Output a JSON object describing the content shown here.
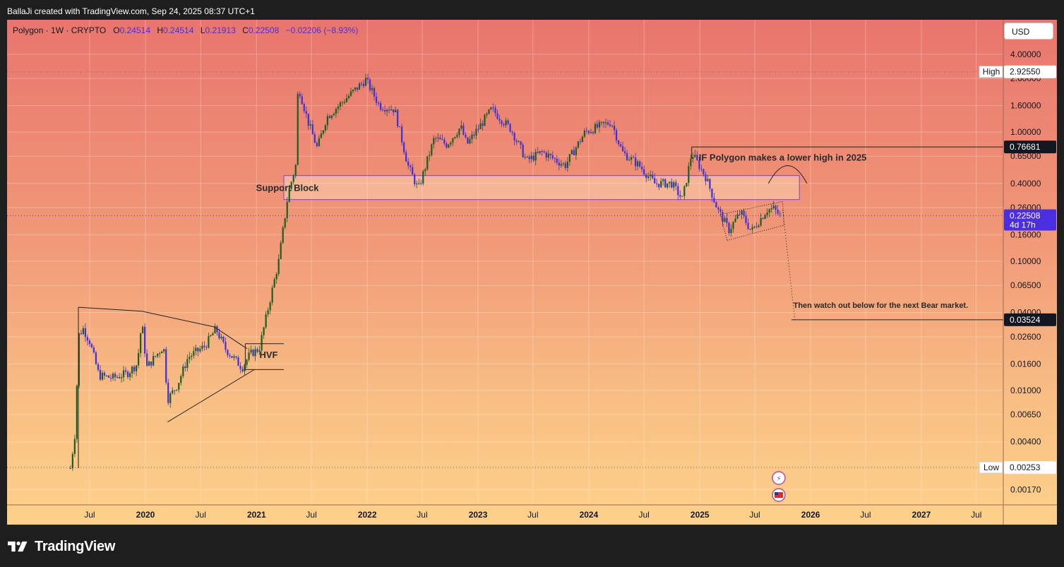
{
  "header": {
    "attribution": "BallaJi created with TradingView.com, Sep 24, 2025 08:37 UTC+1"
  },
  "legend": {
    "symbol": "Polygon · 1W · CRYPTO",
    "o_label": "O",
    "o": "0.24514",
    "h_label": "H",
    "h": "0.24514",
    "l_label": "L",
    "l": "0.21913",
    "c_label": "C",
    "c": "0.22508",
    "change": "−0.02206 (−8.93%)"
  },
  "currency_button": "USD",
  "brand": {
    "name": "TradingView"
  },
  "colors": {
    "up": "#1b5e20",
    "down": "#3f2fd6",
    "drawing": "#222222",
    "price_badge": "#4a2ee0",
    "dark_badge": "#131722"
  },
  "chart_data": {
    "type": "candlestick",
    "scale": "log",
    "grid": true,
    "ylim": [
      0.0013,
      5.2
    ],
    "y_ticks": [
      "4.00000",
      "2.60000",
      "1.60000",
      "1.00000",
      "0.65000",
      "0.40000",
      "0.26000",
      "0.16000",
      "0.10000",
      "0.06500",
      "0.04000",
      "0.02600",
      "0.01600",
      "0.01000",
      "0.00650",
      "0.00400",
      "0.00170"
    ],
    "x_ticks": [
      {
        "label": "Jul",
        "date": "2019-07-01",
        "bold": false
      },
      {
        "label": "2020",
        "date": "2020-01-01",
        "bold": true
      },
      {
        "label": "Jul",
        "date": "2020-07-01",
        "bold": false
      },
      {
        "label": "2021",
        "date": "2021-01-01",
        "bold": true
      },
      {
        "label": "Jul",
        "date": "2021-07-01",
        "bold": false
      },
      {
        "label": "2022",
        "date": "2022-01-01",
        "bold": true
      },
      {
        "label": "Jul",
        "date": "2022-07-01",
        "bold": false
      },
      {
        "label": "2023",
        "date": "2023-01-01",
        "bold": true
      },
      {
        "label": "Jul",
        "date": "2023-07-01",
        "bold": false
      },
      {
        "label": "2024",
        "date": "2024-01-01",
        "bold": true
      },
      {
        "label": "Jul",
        "date": "2024-07-01",
        "bold": false
      },
      {
        "label": "2025",
        "date": "2025-01-01",
        "bold": true
      },
      {
        "label": "Jul",
        "date": "2025-07-01",
        "bold": false
      },
      {
        "label": "2026",
        "date": "2026-01-01",
        "bold": true
      },
      {
        "label": "Jul",
        "date": "2026-07-01",
        "bold": false
      },
      {
        "label": "2027",
        "date": "2027-01-01",
        "bold": true
      },
      {
        "label": "Jul",
        "date": "2027-07-01",
        "bold": false
      }
    ],
    "price_path": [
      [
        "2019-04-29",
        0.0025
      ],
      [
        "2019-05-13",
        0.0045
      ],
      [
        "2019-05-27",
        0.027
      ],
      [
        "2019-06-10",
        0.03
      ],
      [
        "2019-07-01",
        0.024
      ],
      [
        "2019-08-01",
        0.013
      ],
      [
        "2019-09-15",
        0.0125
      ],
      [
        "2019-11-01",
        0.0135
      ],
      [
        "2019-12-05",
        0.016
      ],
      [
        "2019-12-20",
        0.034
      ],
      [
        "2020-01-05",
        0.015
      ],
      [
        "2020-02-15",
        0.02
      ],
      [
        "2020-03-01",
        0.022
      ],
      [
        "2020-03-14",
        0.0085
      ],
      [
        "2020-04-15",
        0.011
      ],
      [
        "2020-05-20",
        0.018
      ],
      [
        "2020-07-15",
        0.022
      ],
      [
        "2020-08-20",
        0.03
      ],
      [
        "2020-09-20",
        0.021
      ],
      [
        "2020-11-15",
        0.015
      ],
      [
        "2020-12-10",
        0.019
      ],
      [
        "2021-01-10",
        0.021
      ],
      [
        "2021-02-10",
        0.045
      ],
      [
        "2021-03-15",
        0.1
      ],
      [
        "2021-04-15",
        0.33
      ],
      [
        "2021-05-10",
        0.55
      ],
      [
        "2021-05-18",
        2.3
      ],
      [
        "2021-06-20",
        1.2
      ],
      [
        "2021-07-20",
        0.75
      ],
      [
        "2021-08-20",
        1.3
      ],
      [
        "2021-10-10",
        1.7
      ],
      [
        "2021-12-27",
        2.55
      ],
      [
        "2022-02-10",
        1.6
      ],
      [
        "2022-04-01",
        1.5
      ],
      [
        "2022-05-15",
        0.55
      ],
      [
        "2022-06-18",
        0.36
      ],
      [
        "2022-08-10",
        0.9
      ],
      [
        "2022-09-20",
        0.8
      ],
      [
        "2022-11-05",
        1.1
      ],
      [
        "2022-11-25",
        0.8
      ],
      [
        "2023-02-15",
        1.5
      ],
      [
        "2023-04-20",
        1.05
      ],
      [
        "2023-06-10",
        0.6
      ],
      [
        "2023-08-01",
        0.7
      ],
      [
        "2023-10-15",
        0.55
      ],
      [
        "2023-12-20",
        1.0
      ],
      [
        "2024-03-15",
        1.2
      ],
      [
        "2024-04-20",
        0.7
      ],
      [
        "2024-06-15",
        0.55
      ],
      [
        "2024-08-05",
        0.4
      ],
      [
        "2024-09-30",
        0.4
      ],
      [
        "2024-11-05",
        0.3
      ],
      [
        "2024-12-05",
        0.69
      ],
      [
        "2025-01-20",
        0.45
      ],
      [
        "2025-03-01",
        0.25
      ],
      [
        "2025-04-07",
        0.175
      ],
      [
        "2025-05-15",
        0.24
      ],
      [
        "2025-06-20",
        0.17
      ],
      [
        "2025-08-10",
        0.25
      ],
      [
        "2025-09-01",
        0.255
      ],
      [
        "2025-09-22",
        0.225
      ]
    ],
    "levels": {
      "high": {
        "label": "High",
        "value": "2.92550"
      },
      "low": {
        "label": "Low",
        "value": "0.00253"
      },
      "last": {
        "value": "0.22508",
        "countdown": "4d 17h"
      },
      "resistance": {
        "value": "0.76681"
      },
      "target": {
        "value": "0.03524"
      }
    },
    "annotations": {
      "support_block": "Support Block",
      "hvf": "HVF",
      "lower_high": "IF Polygon makes a lower high in 2025",
      "bear_note": "Then watch out below for the next Bear market."
    }
  }
}
